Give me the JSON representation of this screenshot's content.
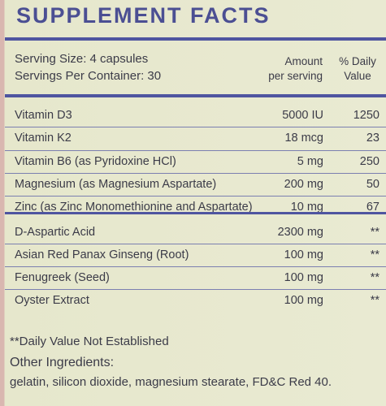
{
  "header": {
    "title": "SUPPLEMENT FACTS"
  },
  "serving": {
    "size": "Serving Size: 4 capsules",
    "per_container": "Servings Per Container: 30",
    "amount_heading": [
      "Amount",
      "per serving"
    ],
    "dv_heading": [
      "% Daily",
      "Value"
    ]
  },
  "table": {
    "sections": [
      {
        "rows": [
          [
            "Vitamin D3",
            "5000 IU",
            "1250"
          ],
          [
            "Vitamin K2",
            "18 mcg",
            "23"
          ],
          [
            "Vitamin B6 (as Pyridoxine HCl)",
            "5 mg",
            "250"
          ],
          [
            "Magnesium (as Magnesium Aspartate)",
            "200 mg",
            "50"
          ],
          [
            "Zinc (as Zinc Monomethionine and Aspartate)",
            "10 mg",
            "67"
          ]
        ]
      },
      {
        "rows": [
          [
            "D-Aspartic Acid",
            "2300 mg",
            "**"
          ],
          [
            "Asian Red Panax Ginseng (Root)",
            "100 mg",
            "**"
          ],
          [
            "Fenugreek (Seed)",
            "100 mg",
            "**"
          ],
          [
            "Oyster Extract",
            "100 mg",
            "**"
          ]
        ]
      }
    ]
  },
  "footnote": "**Daily Value Not Established",
  "other_ingredients": {
    "heading": "Other Ingredients:",
    "text": "gelatin, silicon dioxide, magnesium stearate, FD&C Red 40."
  }
}
